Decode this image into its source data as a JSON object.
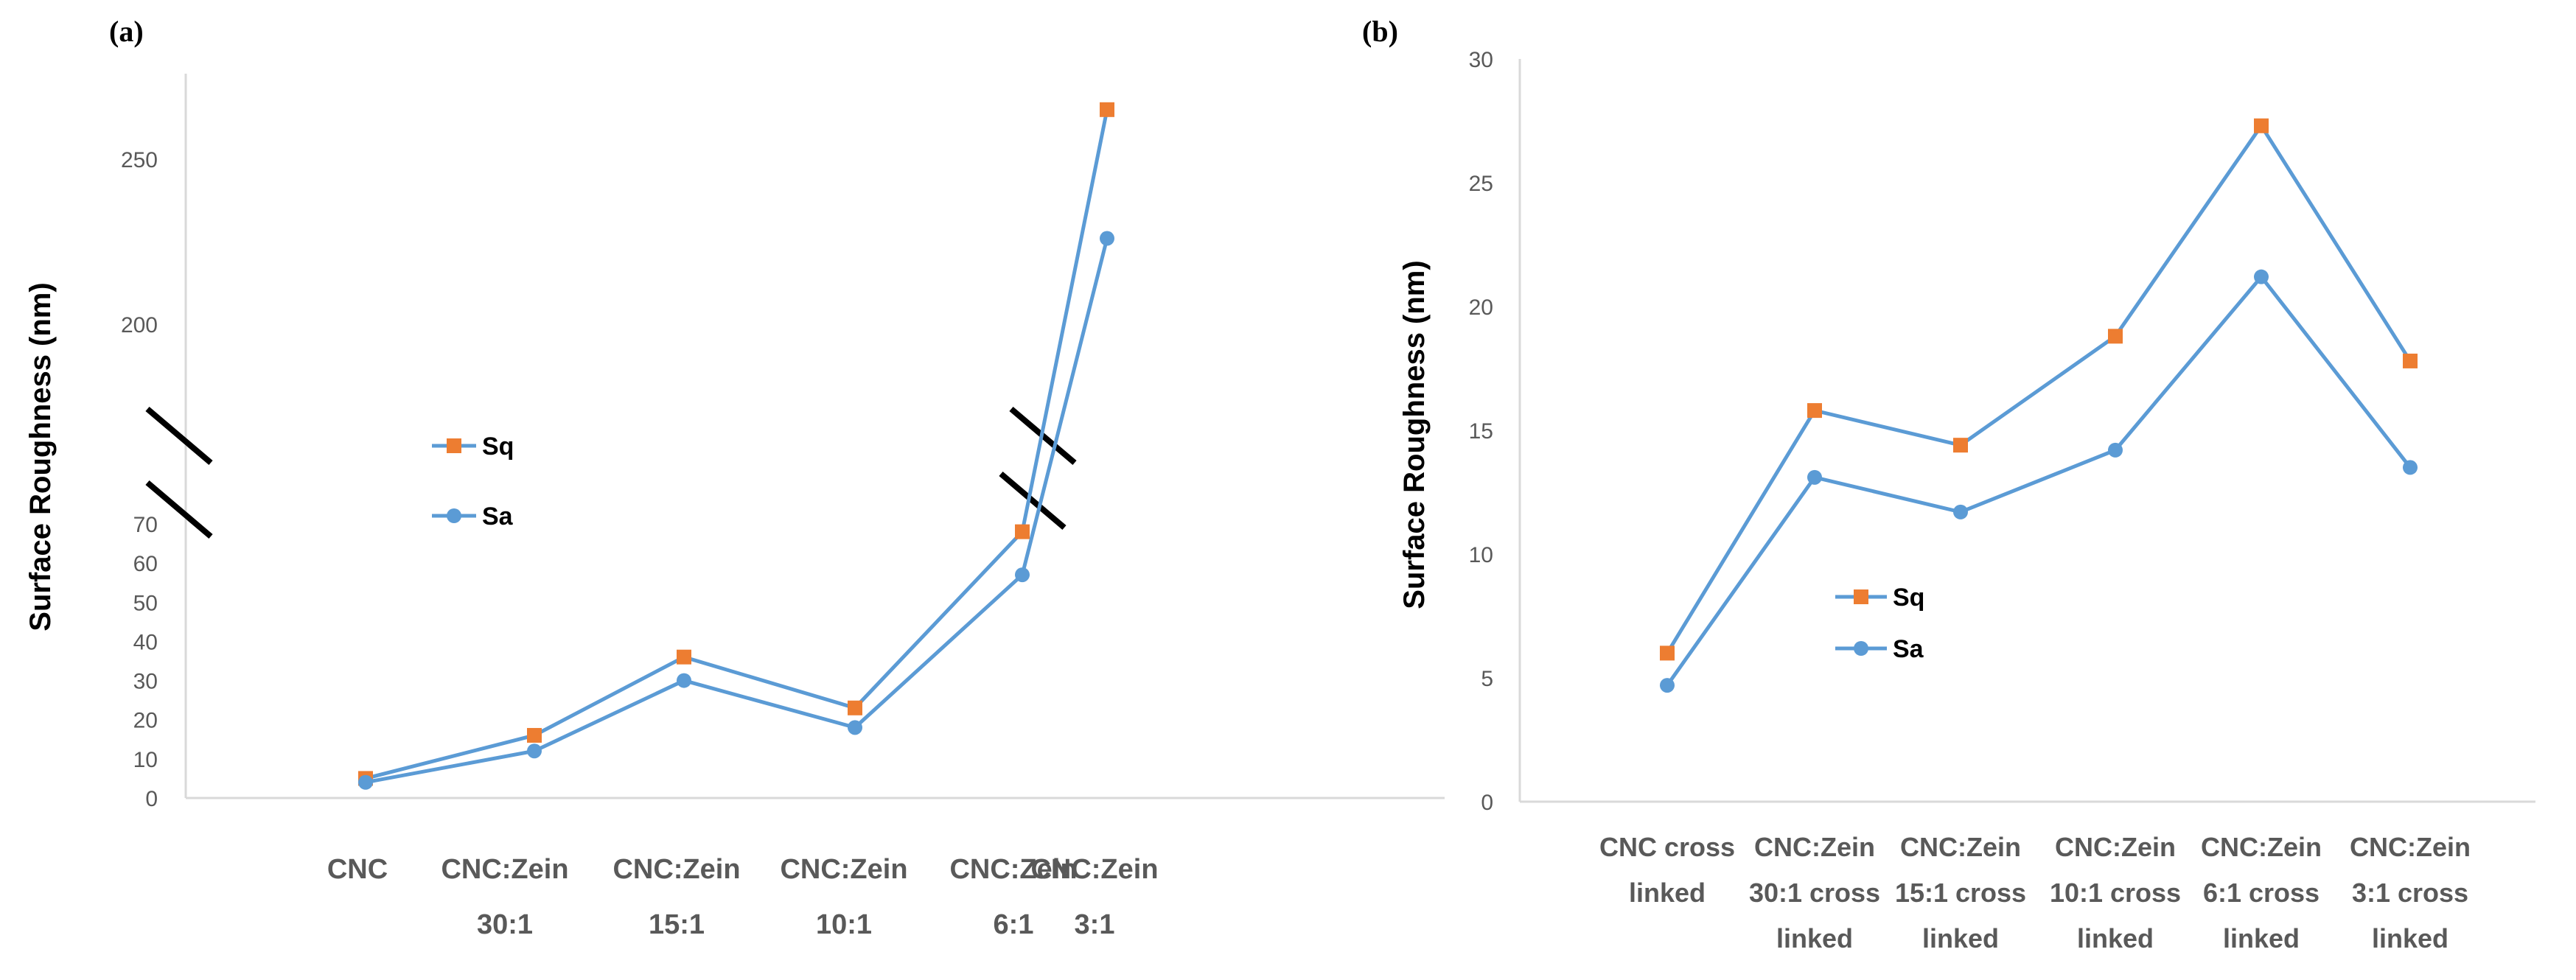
{
  "panel_a_label": "(a)",
  "panel_b_label": "(b)",
  "colors": {
    "line": "#5b9bd5",
    "sq_marker": "#ed7d31",
    "sa_marker": "#5b9bd5",
    "axis": "#d9d9d9",
    "tick_text": "#595959"
  },
  "chart_data": [
    {
      "id": "a",
      "type": "line",
      "ylabel": "Surface Roughness (nm)",
      "axis_break": true,
      "lower_ylim": [
        0,
        70
      ],
      "upper_ylim": [
        180,
        265
      ],
      "lower_yticks": [
        "0",
        "10",
        "20",
        "30",
        "40",
        "50",
        "60",
        "70"
      ],
      "upper_yticks": [
        "200",
        "250"
      ],
      "categories": [
        [
          "CNC",
          ""
        ],
        [
          "CNC:Zein",
          "30:1"
        ],
        [
          "CNC:Zein",
          "15:1"
        ],
        [
          "CNC:Zein",
          "10:1"
        ],
        [
          "CNC:Zein",
          "6:1"
        ],
        [
          "CNC:Zein",
          "3:1"
        ]
      ],
      "legend": [
        "Sq",
        "Sa"
      ],
      "series": [
        {
          "name": "Sq",
          "marker": "square",
          "values": [
            5,
            16,
            36,
            23,
            68,
            265
          ]
        },
        {
          "name": "Sa",
          "marker": "circle",
          "values": [
            4,
            12,
            30,
            18,
            57,
            226
          ]
        }
      ]
    },
    {
      "id": "b",
      "type": "line",
      "ylabel": "Surface Roughness (nm)",
      "ylim": [
        0,
        30
      ],
      "yticks": [
        "0",
        "5",
        "10",
        "15",
        "20",
        "25",
        "30"
      ],
      "categories": [
        [
          "CNC cross",
          "linked"
        ],
        [
          "CNC:Zein",
          "30:1 cross",
          "linked"
        ],
        [
          "CNC:Zein",
          "15:1 cross",
          "linked"
        ],
        [
          "CNC:Zein",
          "10:1 cross",
          "linked"
        ],
        [
          "CNC:Zein",
          "6:1 cross",
          "linked"
        ],
        [
          "CNC:Zein",
          "3:1 cross",
          "linked"
        ]
      ],
      "legend": [
        "Sq",
        "Sa"
      ],
      "series": [
        {
          "name": "Sq",
          "marker": "square",
          "values": [
            6,
            15.8,
            14.4,
            18.8,
            27.3,
            17.8
          ]
        },
        {
          "name": "Sa",
          "marker": "circle",
          "values": [
            4.7,
            13.1,
            11.7,
            14.2,
            21.2,
            13.5
          ]
        }
      ]
    }
  ]
}
